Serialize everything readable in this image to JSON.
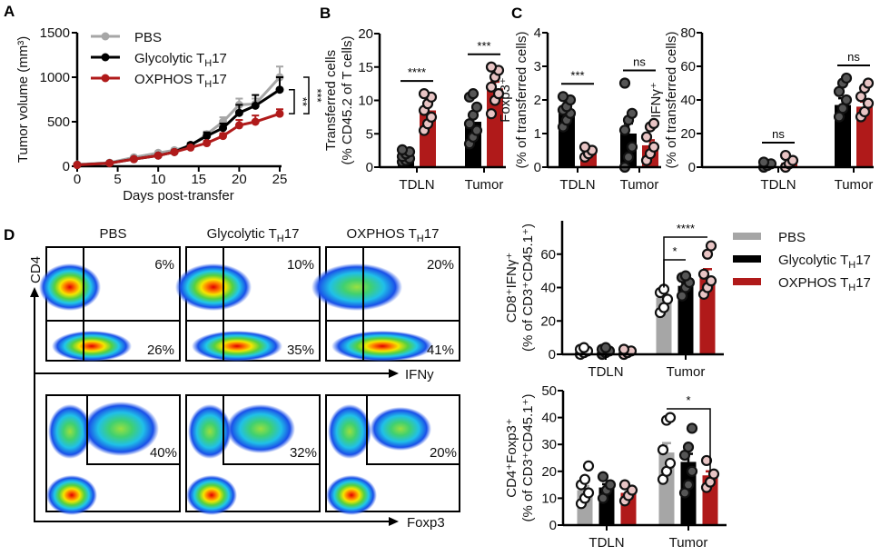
{
  "panel_labels": {
    "A": "A",
    "B": "B",
    "C": "C",
    "D": "D"
  },
  "legend": {
    "items": [
      {
        "label": "PBS",
        "color": "#a6a6a6",
        "point_fill": "#ffffff"
      },
      {
        "label": "Glycolytic TH17",
        "color": "#000000",
        "point_fill": "#555555"
      },
      {
        "label": "OXPHOS TH17",
        "color": "#b01a1a",
        "point_fill": "#e8c4c4"
      }
    ]
  },
  "chart_data": [
    {
      "id": "A",
      "type": "line",
      "xlabel": "Days post-transfer",
      "ylabel": "Tumor volume (mm³)",
      "xlim": [
        0,
        25
      ],
      "ylim": [
        0,
        1500
      ],
      "xticks": [
        0,
        5,
        10,
        15,
        20,
        25
      ],
      "yticks": [
        0,
        500,
        1000,
        1500
      ],
      "legend_placement": "top-left",
      "x": [
        0,
        4,
        7,
        10,
        12,
        14,
        16,
        18,
        20,
        22,
        25
      ],
      "series": [
        {
          "name": "PBS",
          "values": [
            20,
            40,
            100,
            150,
            180,
            230,
            360,
            500,
            690,
            700,
            1000
          ],
          "error": [
            5,
            8,
            10,
            15,
            15,
            20,
            30,
            50,
            70,
            60,
            120
          ]
        },
        {
          "name": "Glycolytic TH17",
          "values": [
            15,
            35,
            80,
            120,
            160,
            240,
            340,
            430,
            600,
            680,
            860
          ],
          "error": [
            5,
            8,
            10,
            15,
            15,
            20,
            40,
            50,
            90,
            120,
            140
          ]
        },
        {
          "name": "OXPHOS TH17",
          "values": [
            15,
            35,
            80,
            120,
            160,
            210,
            260,
            340,
            460,
            500,
            590
          ],
          "error": [
            5,
            8,
            10,
            15,
            15,
            15,
            25,
            30,
            60,
            70,
            50
          ]
        }
      ],
      "annotations": [
        {
          "label": "**",
          "compare": [
            "Glycolytic TH17",
            "OXPHOS TH17"
          ]
        },
        {
          "label": "***",
          "compare": [
            "PBS",
            "OXPHOS TH17"
          ]
        }
      ]
    },
    {
      "id": "B",
      "type": "bar",
      "ylabel": [
        "Transferred cells",
        "(% CD45.2 of T cells)"
      ],
      "ylim": [
        0,
        20
      ],
      "yticks": [
        0,
        5,
        10,
        15,
        20
      ],
      "categories": [
        "TDLN",
        "Tumor"
      ],
      "series": [
        {
          "name": "Glycolytic TH17",
          "values": [
            1.5,
            6.8
          ],
          "error": [
            0.3,
            1.0
          ],
          "points": [
            [
              0.8,
              1.0,
              1.3,
              1.6,
              2.0,
              2.3,
              2.6
            ],
            [
              3.5,
              4.5,
              5.5,
              6.5,
              7.8,
              9.0,
              10.5,
              11.0
            ]
          ]
        },
        {
          "name": "OXPHOS TH17",
          "values": [
            8.5,
            11.8
          ],
          "error": [
            0.8,
            1.0
          ],
          "points": [
            [
              5.5,
              6.5,
              7.5,
              8.5,
              9.5,
              10.5,
              11.0
            ],
            [
              8.0,
              10.0,
              11.0,
              12.0,
              13.5,
              14.5,
              15.0
            ]
          ]
        }
      ],
      "annotations": [
        {
          "category": "TDLN",
          "label": "****"
        },
        {
          "category": "Tumor",
          "label": "***"
        }
      ]
    },
    {
      "id": "C1",
      "type": "bar",
      "ylabel": [
        "Foxp3⁺",
        "(% of transferred cells)"
      ],
      "ylim": [
        0,
        4
      ],
      "yticks": [
        0,
        1,
        2,
        3,
        4
      ],
      "categories": [
        "TDLN",
        "Tumor"
      ],
      "series": [
        {
          "name": "Glycolytic TH17",
          "values": [
            1.6,
            1.0
          ],
          "error": [
            0.12,
            0.3
          ],
          "points": [
            [
              1.2,
              1.4,
              1.6,
              1.7,
              1.8,
              2.0,
              2.1
            ],
            [
              0.0,
              0.3,
              0.6,
              1.1,
              1.4,
              1.6,
              2.5
            ]
          ]
        },
        {
          "name": "OXPHOS TH17",
          "values": [
            0.4,
            0.65
          ],
          "error": [
            0.05,
            0.15
          ],
          "points": [
            [
              0.3,
              0.4,
              0.5,
              0.6
            ],
            [
              0.2,
              0.4,
              0.6,
              0.9,
              1.2,
              1.3
            ]
          ]
        }
      ],
      "annotations": [
        {
          "category": "TDLN",
          "label": "***"
        },
        {
          "category": "Tumor",
          "label": "ns"
        }
      ]
    },
    {
      "id": "C2",
      "type": "bar",
      "ylabel": [
        "IFNγ⁺",
        "(% of transferred cells)"
      ],
      "ylim": [
        0,
        80
      ],
      "yticks": [
        0,
        20,
        40,
        60,
        80
      ],
      "categories": [
        "TDLN",
        "Tumor"
      ],
      "series": [
        {
          "name": "Glycolytic TH17",
          "values": [
            1.5,
            37
          ],
          "error": [
            0.5,
            4
          ],
          "points": [
            [
              0,
              1,
              2,
              3
            ],
            [
              30,
              35,
              40,
              45,
              50,
              53
            ]
          ]
        },
        {
          "name": "OXPHOS TH17",
          "values": [
            2.5,
            36
          ],
          "error": [
            1.5,
            3
          ],
          "points": [
            [
              0,
              2,
              4,
              7
            ],
            [
              30,
              33,
              38,
              42,
              47,
              50
            ]
          ]
        }
      ],
      "annotations": [
        {
          "category": "TDLN",
          "label": "ns"
        },
        {
          "category": "Tumor",
          "label": "ns"
        }
      ]
    },
    {
      "id": "D1",
      "type": "bar",
      "ylabel": [
        "CD8⁺IFNγ⁺",
        "(% of CD3⁺CD45.1⁺)"
      ],
      "ylim": [
        0,
        80
      ],
      "yticks": [
        0,
        20,
        40,
        60
      ],
      "categories": [
        "TDLN",
        "Tumor"
      ],
      "legend_placement": "right",
      "series": [
        {
          "name": "PBS",
          "values": [
            2,
            34
          ],
          "error": [
            0.5,
            2
          ],
          "points": [
            [
              0,
              1,
              2,
              3,
              4
            ],
            [
              25,
              28,
              33,
              37,
              39
            ]
          ]
        },
        {
          "name": "Glycolytic TH17",
          "values": [
            2,
            41
          ],
          "error": [
            0.5,
            2
          ],
          "points": [
            [
              0,
              1,
              2,
              3,
              4
            ],
            [
              35,
              40,
              43,
              46,
              47
            ]
          ]
        },
        {
          "name": "OXPHOS TH17",
          "values": [
            2,
            46
          ],
          "error": [
            0.5,
            5
          ],
          "points": [
            [
              0,
              1,
              2,
              3
            ],
            [
              36,
              40,
              44,
              48,
              60,
              65
            ]
          ]
        }
      ],
      "annotations": [
        {
          "compare": [
            "Tumor:PBS",
            "Tumor:Glycolytic TH17"
          ],
          "label": "*"
        },
        {
          "compare": [
            "Tumor:PBS",
            "Tumor:OXPHOS TH17"
          ],
          "label": "****"
        }
      ]
    },
    {
      "id": "D2",
      "type": "bar",
      "ylabel": [
        "CD4⁺Foxp3⁺",
        "(% of CD3⁺CD45.1⁺)"
      ],
      "ylim": [
        0,
        50
      ],
      "yticks": [
        0,
        10,
        20,
        30,
        40,
        50
      ],
      "categories": [
        "TDLN",
        "Tumor"
      ],
      "series": [
        {
          "name": "PBS",
          "values": [
            13,
            27
          ],
          "error": [
            1.5,
            3.5
          ],
          "points": [
            [
              8,
              10,
              12,
              15,
              17,
              22
            ],
            [
              17,
              20,
              23,
              28,
              39,
              40
            ]
          ]
        },
        {
          "name": "Glycolytic TH17",
          "values": [
            14,
            23.5
          ],
          "error": [
            1.2,
            3
          ],
          "points": [
            [
              10,
              13,
              15,
              18
            ],
            [
              12,
              15,
              20,
              26,
              29,
              36
            ]
          ]
        },
        {
          "name": "OXPHOS TH17",
          "values": [
            12,
            18.5
          ],
          "error": [
            1.5,
            1.5
          ],
          "points": [
            [
              9,
              11,
              13,
              15
            ],
            [
              14,
              16,
              19,
              24
            ]
          ]
        }
      ],
      "annotations": [
        {
          "compare": [
            "Tumor:PBS",
            "Tumor:OXPHOS TH17"
          ],
          "label": "*"
        }
      ]
    }
  ],
  "flow": {
    "columns": [
      "PBS",
      "Glycolytic TH17",
      "OXPHOS TH17"
    ],
    "y_axis_label": "CD4",
    "row1": {
      "x_axis_label": "IFNy",
      "upper_right": [
        "6%",
        "10%",
        "20%"
      ],
      "lower_right": [
        "26%",
        "35%",
        "41%"
      ]
    },
    "row2": {
      "x_axis_label": "Foxp3",
      "gate": [
        "40%",
        "32%",
        "20%"
      ]
    }
  }
}
